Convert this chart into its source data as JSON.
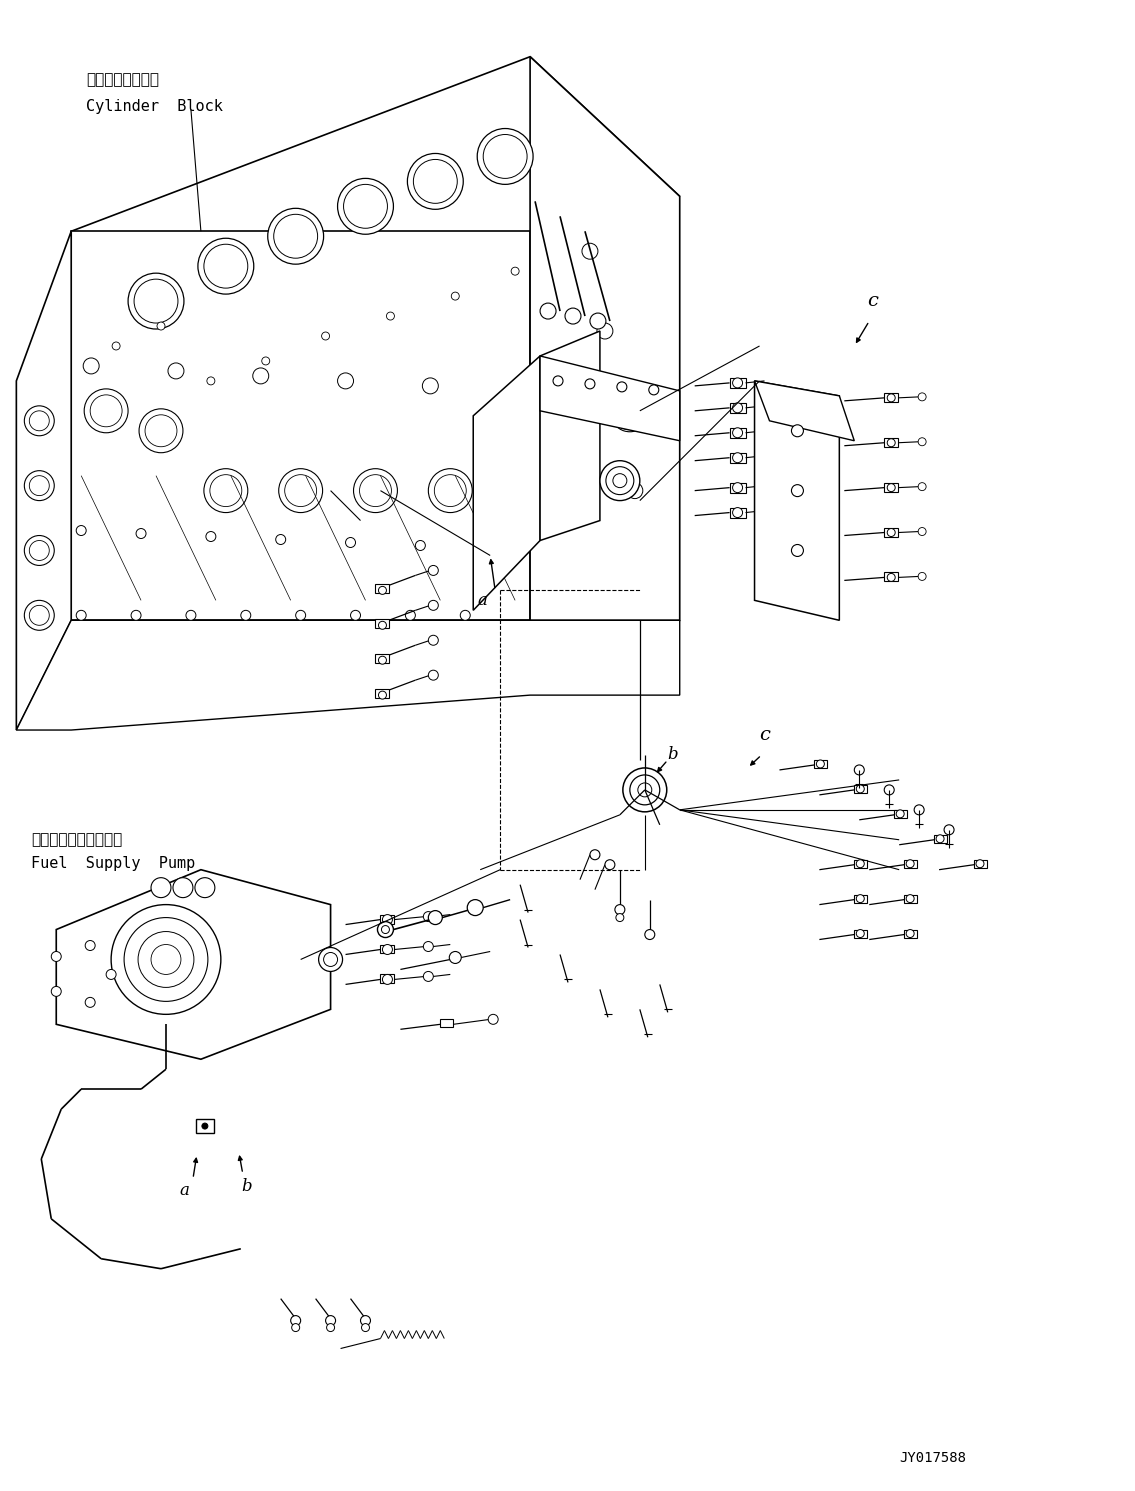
{
  "bg_color": "#ffffff",
  "line_color": "#000000",
  "fig_width": 11.35,
  "fig_height": 14.91,
  "dpi": 100,
  "label_cylinder_jp": "シリンダブロック",
  "label_cylinder_en": "Cylinder  Block",
  "label_pump_jp": "フェルサブライポンプ",
  "label_pump_en": "Fuel  Supply  Pump",
  "label_id": "JY017588",
  "label_a_upper": "a",
  "label_a_lower": "a",
  "label_b_upper": "b",
  "label_b_lower": "b",
  "label_c_upper": "c",
  "label_c_lower": "c"
}
